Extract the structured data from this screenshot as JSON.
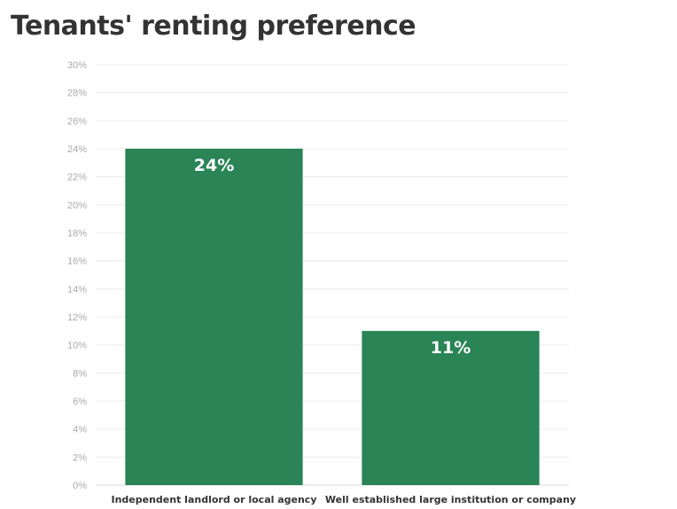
{
  "chart_data": {
    "type": "bar",
    "title": "Tenants' renting preference",
    "categories": [
      "Independent landlord or local agency",
      "Well established large institution or company"
    ],
    "values": [
      24,
      11
    ],
    "value_labels": [
      "24%",
      "11%"
    ],
    "ylim": [
      0,
      30
    ],
    "y_ticks": [
      0,
      2,
      4,
      6,
      8,
      10,
      12,
      14,
      16,
      18,
      20,
      22,
      24,
      26,
      28,
      30
    ],
    "y_tick_format": "%",
    "grid": true,
    "bar_color": "#2a8456"
  }
}
